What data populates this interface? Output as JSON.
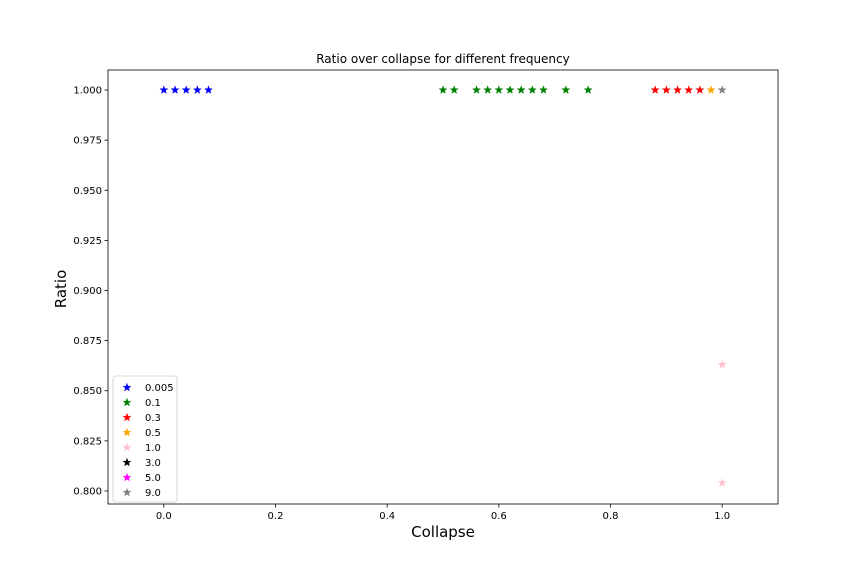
{
  "chart_data": {
    "type": "scatter",
    "title": "Ratio over collapse for different frequency",
    "xlabel": "Collapse",
    "ylabel": "Ratio",
    "xlim": [
      -0.1,
      1.1
    ],
    "ylim": [
      0.7935,
      1.01
    ],
    "xticks": [
      0.0,
      0.2,
      0.4,
      0.6,
      0.8,
      1.0
    ],
    "xtick_labels": [
      "0.0",
      "0.2",
      "0.4",
      "0.6",
      "0.8",
      "1.0"
    ],
    "yticks": [
      0.8,
      0.825,
      0.85,
      0.875,
      0.9,
      0.925,
      0.95,
      0.975,
      1.0
    ],
    "ytick_labels": [
      "0.800",
      "0.825",
      "0.850",
      "0.875",
      "0.900",
      "0.925",
      "0.950",
      "0.975",
      "1.000"
    ],
    "marker": "star",
    "grid": false,
    "legend_position": "lower-left",
    "series": [
      {
        "name": "0.005",
        "color": "#0000ff",
        "points": [
          [
            0.0,
            1.0
          ],
          [
            0.02,
            1.0
          ],
          [
            0.04,
            1.0
          ],
          [
            0.06,
            1.0
          ],
          [
            0.08,
            1.0
          ]
        ]
      },
      {
        "name": "0.1",
        "color": "#008000",
        "points": [
          [
            0.5,
            1.0
          ],
          [
            0.52,
            1.0
          ],
          [
            0.56,
            1.0
          ],
          [
            0.58,
            1.0
          ],
          [
            0.6,
            1.0
          ],
          [
            0.62,
            1.0
          ],
          [
            0.64,
            1.0
          ],
          [
            0.66,
            1.0
          ],
          [
            0.68,
            1.0
          ],
          [
            0.72,
            1.0
          ],
          [
            0.76,
            1.0
          ]
        ]
      },
      {
        "name": "0.3",
        "color": "#ff0000",
        "points": [
          [
            0.88,
            1.0
          ],
          [
            0.9,
            1.0
          ],
          [
            0.92,
            1.0
          ],
          [
            0.94,
            1.0
          ],
          [
            0.96,
            1.0
          ]
        ]
      },
      {
        "name": "0.5",
        "color": "#ffa500",
        "points": [
          [
            0.98,
            1.0
          ]
        ]
      },
      {
        "name": "1.0",
        "color": "#ffc0cb",
        "points": [
          [
            1.0,
            0.863
          ],
          [
            1.0,
            0.804
          ]
        ]
      },
      {
        "name": "3.0",
        "color": "#000000",
        "points": []
      },
      {
        "name": "5.0",
        "color": "#ff00ff",
        "points": []
      },
      {
        "name": "9.0",
        "color": "#808080",
        "points": [
          [
            1.0,
            1.0
          ]
        ]
      }
    ]
  }
}
